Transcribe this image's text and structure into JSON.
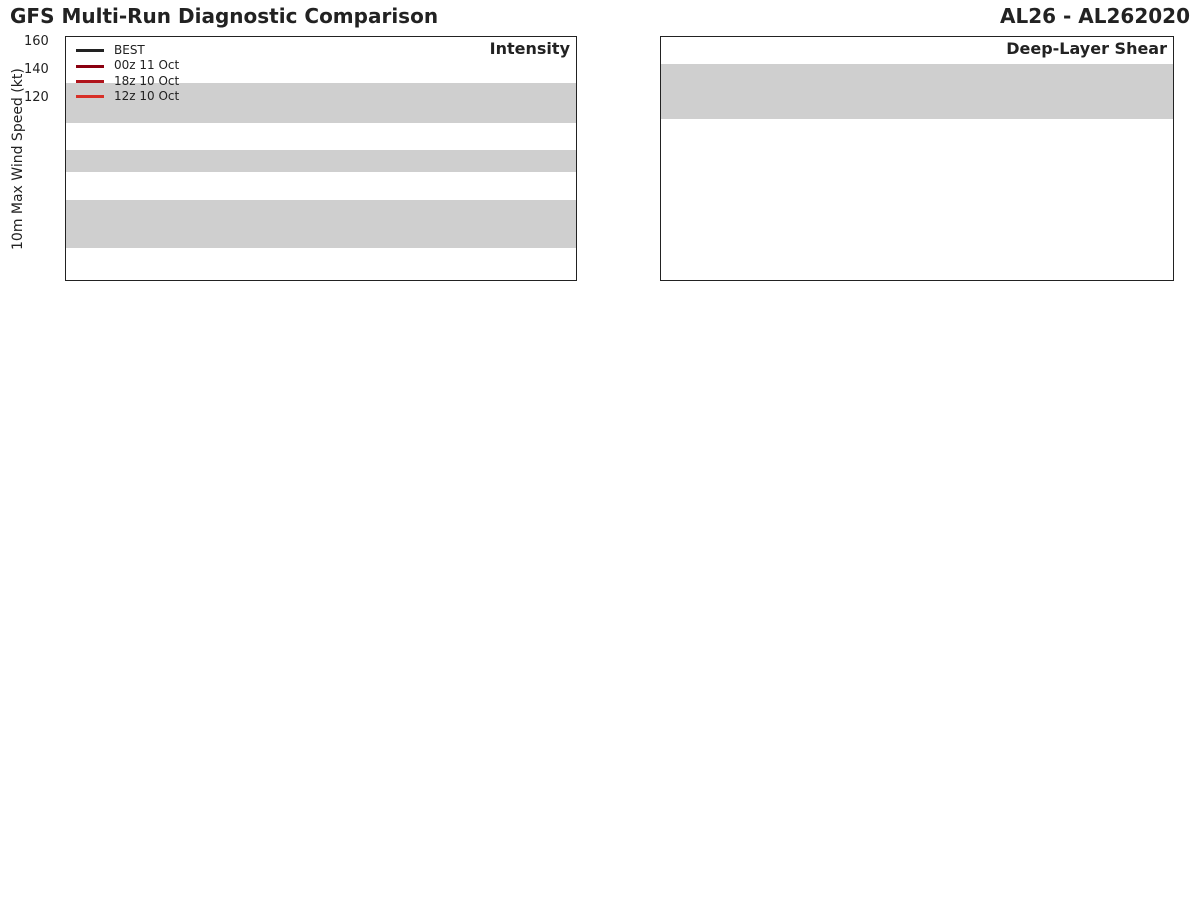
{
  "header": {
    "title": "GFS Multi-Run Diagnostic Comparison",
    "storm": "AL26 - AL262020"
  },
  "legend": [
    "BEST",
    "00z 11 Oct",
    "18z 10 Oct",
    "12z 10 Oct"
  ],
  "chart_data": {
    "intensity": {
      "type": "line",
      "title": "Intensity",
      "ylabel": "10m Max Wind Speed (kt)",
      "yticks": [
        "160",
        "140",
        "120"
      ]
    },
    "shear": {
      "type": "line",
      "title": "Deep-Layer Shear"
    }
  }
}
